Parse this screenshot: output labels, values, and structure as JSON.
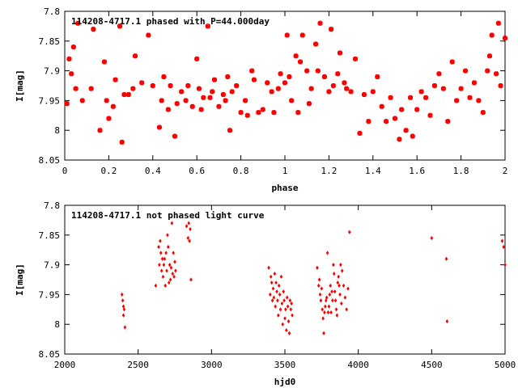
{
  "chart_data": [
    {
      "type": "scatter",
      "title": "114208-4717.1 phased with P=44.000day",
      "xlabel": "phase",
      "ylabel": "I[mag]",
      "xlim": [
        0,
        2
      ],
      "ylim": [
        8.05,
        7.8
      ],
      "y_inverted": true,
      "xticks": [
        "0",
        "0.2",
        "0.4",
        "0.6",
        "0.8",
        "1",
        "1.2",
        "1.4",
        "1.6",
        "1.8",
        "2"
      ],
      "yticks": [
        "7.8",
        "7.85",
        "7.9",
        "7.95",
        "8",
        "8.05"
      ],
      "marker_color": "#ff0000",
      "marker": "filled-square-dot",
      "points": [
        [
          0.01,
          7.955
        ],
        [
          0.02,
          7.88
        ],
        [
          0.03,
          7.905
        ],
        [
          0.04,
          7.86
        ],
        [
          0.05,
          7.93
        ],
        [
          0.06,
          7.82
        ],
        [
          0.08,
          7.95
        ],
        [
          0.12,
          7.93
        ],
        [
          0.13,
          7.83
        ],
        [
          0.16,
          8.0
        ],
        [
          0.18,
          7.885
        ],
        [
          0.19,
          7.95
        ],
        [
          0.2,
          7.98
        ],
        [
          0.22,
          7.96
        ],
        [
          0.23,
          7.915
        ],
        [
          0.25,
          7.825
        ],
        [
          0.26,
          8.02
        ],
        [
          0.27,
          7.94
        ],
        [
          0.29,
          7.94
        ],
        [
          0.31,
          7.93
        ],
        [
          0.32,
          7.875
        ],
        [
          0.35,
          7.92
        ],
        [
          0.38,
          7.84
        ],
        [
          0.4,
          7.925
        ],
        [
          0.43,
          7.995
        ],
        [
          0.44,
          7.95
        ],
        [
          0.45,
          7.91
        ],
        [
          0.47,
          7.965
        ],
        [
          0.48,
          7.925
        ],
        [
          0.5,
          8.01
        ],
        [
          0.51,
          7.955
        ],
        [
          0.53,
          7.935
        ],
        [
          0.55,
          7.95
        ],
        [
          0.56,
          7.925
        ],
        [
          0.58,
          7.96
        ],
        [
          0.6,
          7.88
        ],
        [
          0.61,
          7.93
        ],
        [
          0.62,
          7.965
        ],
        [
          0.63,
          7.945
        ],
        [
          0.65,
          7.825
        ],
        [
          0.66,
          7.945
        ],
        [
          0.67,
          7.935
        ],
        [
          0.68,
          7.915
        ],
        [
          0.7,
          7.96
        ],
        [
          0.72,
          7.94
        ],
        [
          0.73,
          7.95
        ],
        [
          0.74,
          7.91
        ],
        [
          0.75,
          8.0
        ],
        [
          0.76,
          7.935
        ],
        [
          0.78,
          7.925
        ],
        [
          0.8,
          7.97
        ],
        [
          0.82,
          7.95
        ],
        [
          0.83,
          7.975
        ],
        [
          0.85,
          7.9
        ],
        [
          0.86,
          7.915
        ],
        [
          0.88,
          7.97
        ],
        [
          0.9,
          7.965
        ],
        [
          0.92,
          7.92
        ],
        [
          0.94,
          7.935
        ],
        [
          0.95,
          7.97
        ],
        [
          0.97,
          7.93
        ],
        [
          0.98,
          7.905
        ],
        [
          1.0,
          7.92
        ],
        [
          1.01,
          7.84
        ],
        [
          1.02,
          7.91
        ],
        [
          1.03,
          7.95
        ],
        [
          1.05,
          7.875
        ],
        [
          1.06,
          7.97
        ],
        [
          1.07,
          7.885
        ],
        [
          1.08,
          7.84
        ],
        [
          1.1,
          7.9
        ],
        [
          1.11,
          7.955
        ],
        [
          1.12,
          7.93
        ],
        [
          1.14,
          7.855
        ],
        [
          1.15,
          7.9
        ],
        [
          1.16,
          7.82
        ],
        [
          1.18,
          7.91
        ],
        [
          1.2,
          7.935
        ],
        [
          1.21,
          7.83
        ],
        [
          1.22,
          7.925
        ],
        [
          1.24,
          7.905
        ],
        [
          1.25,
          7.87
        ],
        [
          1.27,
          7.92
        ],
        [
          1.28,
          7.93
        ],
        [
          1.3,
          7.935
        ],
        [
          1.32,
          7.88
        ],
        [
          1.34,
          8.005
        ],
        [
          1.36,
          7.94
        ],
        [
          1.38,
          7.985
        ],
        [
          1.4,
          7.935
        ],
        [
          1.42,
          7.91
        ],
        [
          1.44,
          7.96
        ],
        [
          1.46,
          7.985
        ],
        [
          1.48,
          7.945
        ],
        [
          1.5,
          7.98
        ],
        [
          1.52,
          8.015
        ],
        [
          1.53,
          7.965
        ],
        [
          1.55,
          8.0
        ],
        [
          1.57,
          7.945
        ],
        [
          1.58,
          8.01
        ],
        [
          1.6,
          7.965
        ],
        [
          1.62,
          7.935
        ],
        [
          1.64,
          7.945
        ],
        [
          1.66,
          7.975
        ],
        [
          1.68,
          7.925
        ],
        [
          1.7,
          7.905
        ],
        [
          1.72,
          7.93
        ],
        [
          1.74,
          7.985
        ],
        [
          1.76,
          7.885
        ],
        [
          1.78,
          7.95
        ],
        [
          1.8,
          7.93
        ],
        [
          1.82,
          7.9
        ],
        [
          1.84,
          7.945
        ],
        [
          1.86,
          7.92
        ],
        [
          1.88,
          7.95
        ],
        [
          1.9,
          7.97
        ],
        [
          1.92,
          7.9
        ],
        [
          1.93,
          7.875
        ],
        [
          1.94,
          7.84
        ],
        [
          1.96,
          7.905
        ],
        [
          1.97,
          7.82
        ],
        [
          1.98,
          7.925
        ],
        [
          2.0,
          7.845
        ]
      ]
    },
    {
      "type": "scatter",
      "title": "114208-4717.1 not phased light curve",
      "xlabel": "hjd0",
      "ylabel": "I[mag]",
      "xlim": [
        2000,
        5000
      ],
      "ylim": [
        8.05,
        7.8
      ],
      "y_inverted": true,
      "xticks": [
        "2000",
        "2500",
        "3000",
        "3500",
        "4000",
        "4500",
        "5000"
      ],
      "yticks": [
        "7.8",
        "7.85",
        "7.9",
        "7.95",
        "8",
        "8.05"
      ],
      "marker_color": "#ff0000",
      "marker": "small-diamond",
      "points": [
        [
          2390,
          7.95
        ],
        [
          2395,
          7.96
        ],
        [
          2400,
          7.97
        ],
        [
          2405,
          7.975
        ],
        [
          2410,
          8.005
        ],
        [
          2400,
          7.985
        ],
        [
          2620,
          7.935
        ],
        [
          2640,
          7.87
        ],
        [
          2645,
          7.9
        ],
        [
          2650,
          7.86
        ],
        [
          2655,
          7.88
        ],
        [
          2660,
          7.91
        ],
        [
          2665,
          7.89
        ],
        [
          2670,
          7.92
        ],
        [
          2675,
          7.9
        ],
        [
          2680,
          7.89
        ],
        [
          2685,
          7.935
        ],
        [
          2690,
          7.88
        ],
        [
          2695,
          7.91
        ],
        [
          2700,
          7.85
        ],
        [
          2705,
          7.87
        ],
        [
          2710,
          7.93
        ],
        [
          2715,
          7.9
        ],
        [
          2720,
          7.925
        ],
        [
          2725,
          7.905
        ],
        [
          2730,
          7.83
        ],
        [
          2735,
          7.915
        ],
        [
          2740,
          7.88
        ],
        [
          2745,
          7.92
        ],
        [
          2750,
          7.895
        ],
        [
          2755,
          7.91
        ],
        [
          2830,
          7.835
        ],
        [
          2840,
          7.855
        ],
        [
          2845,
          7.83
        ],
        [
          2850,
          7.86
        ],
        [
          2855,
          7.84
        ],
        [
          2860,
          7.925
        ],
        [
          3390,
          7.905
        ],
        [
          3400,
          7.95
        ],
        [
          3405,
          7.92
        ],
        [
          3410,
          7.93
        ],
        [
          3415,
          7.96
        ],
        [
          3420,
          7.94
        ],
        [
          3425,
          7.955
        ],
        [
          3430,
          7.915
        ],
        [
          3435,
          7.97
        ],
        [
          3440,
          7.93
        ],
        [
          3445,
          7.945
        ],
        [
          3450,
          7.96
        ],
        [
          3455,
          7.985
        ],
        [
          3460,
          7.935
        ],
        [
          3465,
          7.95
        ],
        [
          3470,
          7.975
        ],
        [
          3475,
          7.92
        ],
        [
          3480,
          7.965
        ],
        [
          3485,
          8.0
        ],
        [
          3490,
          7.945
        ],
        [
          3495,
          7.96
        ],
        [
          3500,
          7.99
        ],
        [
          3505,
          7.975
        ],
        [
          3510,
          8.01
        ],
        [
          3515,
          7.955
        ],
        [
          3520,
          7.97
        ],
        [
          3525,
          7.995
        ],
        [
          3530,
          8.015
        ],
        [
          3535,
          7.96
        ],
        [
          3540,
          7.975
        ],
        [
          3545,
          7.965
        ],
        [
          3550,
          7.985
        ],
        [
          3720,
          7.905
        ],
        [
          3730,
          7.935
        ],
        [
          3735,
          7.925
        ],
        [
          3740,
          7.95
        ],
        [
          3745,
          7.96
        ],
        [
          3750,
          7.94
        ],
        [
          3755,
          7.975
        ],
        [
          3760,
          7.99
        ],
        [
          3765,
          8.015
        ],
        [
          3770,
          7.98
        ],
        [
          3775,
          7.97
        ],
        [
          3780,
          7.96
        ],
        [
          3785,
          7.955
        ],
        [
          3790,
          7.88
        ],
        [
          3795,
          7.98
        ],
        [
          3800,
          7.97
        ],
        [
          3805,
          7.95
        ],
        [
          3810,
          7.935
        ],
        [
          3815,
          7.98
        ],
        [
          3820,
          7.945
        ],
        [
          3825,
          7.96
        ],
        [
          3830,
          7.9
        ],
        [
          3835,
          7.915
        ],
        [
          3840,
          7.945
        ],
        [
          3845,
          7.96
        ],
        [
          3850,
          7.975
        ],
        [
          3855,
          7.985
        ],
        [
          3860,
          7.93
        ],
        [
          3865,
          7.92
        ],
        [
          3870,
          7.935
        ],
        [
          3875,
          7.95
        ],
        [
          3880,
          7.9
        ],
        [
          3885,
          7.965
        ],
        [
          3890,
          7.91
        ],
        [
          3900,
          7.935
        ],
        [
          3910,
          7.955
        ],
        [
          3920,
          7.975
        ],
        [
          3930,
          7.94
        ],
        [
          3940,
          7.845
        ],
        [
          4500,
          7.855
        ],
        [
          4600,
          7.89
        ],
        [
          4605,
          7.995
        ],
        [
          4980,
          7.86
        ],
        [
          4990,
          7.87
        ],
        [
          5000,
          7.9
        ]
      ]
    }
  ]
}
